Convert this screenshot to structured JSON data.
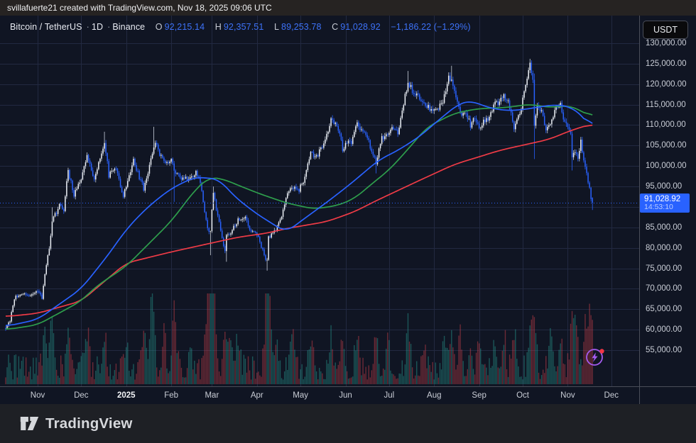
{
  "attribution_bar": {
    "text": "svillafuerte21 created with TradingView.com, Nov 18, 2025 09:06 UTC"
  },
  "legend": {
    "title": "Bitcoin / TetherUS",
    "sep": "·",
    "interval": "1D",
    "exchange": "Binance",
    "o_label": "O",
    "o_value": "92,215.14",
    "h_label": "H",
    "h_value": "92,357.51",
    "l_label": "L",
    "l_value": "89,253.78",
    "c_label": "C",
    "c_value": "91,028.92",
    "change": "−1,186.22 (−1.29%)"
  },
  "price_axis": {
    "currency_button": "USDT",
    "labels": [
      {
        "value": 130000,
        "text": "130,000.00"
      },
      {
        "value": 125000,
        "text": "125,000.00"
      },
      {
        "value": 120000,
        "text": "120,000.00"
      },
      {
        "value": 115000,
        "text": "115,000.00"
      },
      {
        "value": 110000,
        "text": "110,000.00"
      },
      {
        "value": 105000,
        "text": "105,000.00"
      },
      {
        "value": 100000,
        "text": "100,000.00"
      },
      {
        "value": 95000,
        "text": "95,000.00"
      },
      {
        "value": 85000,
        "text": "85,000.00"
      },
      {
        "value": 80000,
        "text": "80,000.00"
      },
      {
        "value": 75000,
        "text": "75,000.00"
      },
      {
        "value": 70000,
        "text": "70,000.00"
      },
      {
        "value": 65000,
        "text": "65,000.00"
      },
      {
        "value": 60000,
        "text": "60,000.00"
      },
      {
        "value": 55000,
        "text": "55,000.00"
      }
    ],
    "last_price_label": {
      "price": "91,028.92",
      "countdown": "14:53:10"
    }
  },
  "time_axis": {
    "ticks": [
      {
        "label": "Nov",
        "day": 22,
        "bold": false
      },
      {
        "label": "Dec",
        "day": 52,
        "bold": false
      },
      {
        "label": "2025",
        "day": 83,
        "bold": true
      },
      {
        "label": "Feb",
        "day": 114,
        "bold": false
      },
      {
        "label": "Mar",
        "day": 142,
        "bold": false
      },
      {
        "label": "Apr",
        "day": 173,
        "bold": false
      },
      {
        "label": "May",
        "day": 203,
        "bold": false
      },
      {
        "label": "Jun",
        "day": 234,
        "bold": false
      },
      {
        "label": "Jul",
        "day": 264,
        "bold": false
      },
      {
        "label": "Aug",
        "day": 295,
        "bold": false
      },
      {
        "label": "Sep",
        "day": 326,
        "bold": false
      },
      {
        "label": "Oct",
        "day": 356,
        "bold": false
      },
      {
        "label": "Nov",
        "day": 387,
        "bold": false
      },
      {
        "label": "Dec",
        "day": 417,
        "bold": false
      }
    ]
  },
  "footer": {
    "brand": "TradingView"
  },
  "events_button": {
    "icon": "lightning-bolt-icon",
    "badge_color": "#f23645"
  },
  "colors": {
    "pane_background": "#101523",
    "grid": "#222941",
    "candle_up": "#eef2f8",
    "candle_down": "#2962ff",
    "ma_fast": "#2962ff",
    "ma_mid": "#2e9e4c",
    "ma_slow": "#ef3b46",
    "volume_up": "rgba(42,166,152,0.45)",
    "volume_down": "rgba(235,72,82,0.42)",
    "last_price_line": "#2962ff",
    "axis_text": "#c9cdd6"
  },
  "chart_data": {
    "type": "candlestick",
    "title": "Bitcoin / TetherUS",
    "interval": "1D",
    "exchange": "Binance",
    "currency": "USDT",
    "ohlc_current": {
      "open": 92215.14,
      "high": 92357.51,
      "low": 89253.78,
      "close": 91028.92,
      "change": -1186.22,
      "change_pct": -1.29
    },
    "last_price": 91028.92,
    "countdown": "14:53:10",
    "y_axis": {
      "visible_min": 55000,
      "visible_max": 130000,
      "step": 5000,
      "grid": true,
      "side": "right"
    },
    "x_axis": {
      "span": "Oct 2024 – Dec 2025",
      "candles": 405,
      "grid": true
    },
    "close_anchors": [
      [
        0,
        60300
      ],
      [
        3,
        62100
      ],
      [
        6,
        67600
      ],
      [
        11,
        69000
      ],
      [
        16,
        68200
      ],
      [
        19,
        68500
      ],
      [
        22,
        69500
      ],
      [
        25,
        67500
      ],
      [
        27,
        74000
      ],
      [
        30,
        80000
      ],
      [
        32,
        86500
      ],
      [
        34,
        88000
      ],
      [
        37,
        90500
      ],
      [
        40,
        89500
      ],
      [
        43,
        98800
      ],
      [
        47,
        93000
      ],
      [
        52,
        96500
      ],
      [
        56,
        102500
      ],
      [
        61,
        96600
      ],
      [
        68,
        106300
      ],
      [
        71,
        97800
      ],
      [
        76,
        99100
      ],
      [
        81,
        92800
      ],
      [
        88,
        101300
      ],
      [
        95,
        94400
      ],
      [
        102,
        104200
      ],
      [
        103,
        106100
      ],
      [
        106,
        103000
      ],
      [
        109,
        100700
      ],
      [
        114,
        101600
      ],
      [
        116,
        98800
      ],
      [
        121,
        96500
      ],
      [
        127,
        97000
      ],
      [
        131,
        98500
      ],
      [
        134,
        96100
      ],
      [
        139,
        84300
      ],
      [
        141,
        84400
      ],
      [
        143,
        93500
      ],
      [
        147,
        86000
      ],
      [
        151,
        79100
      ],
      [
        152,
        82900
      ],
      [
        155,
        83800
      ],
      [
        160,
        86900
      ],
      [
        165,
        87500
      ],
      [
        169,
        84000
      ],
      [
        174,
        82800
      ],
      [
        178,
        78200
      ],
      [
        180,
        76600
      ],
      [
        181,
        82400
      ],
      [
        186,
        84600
      ],
      [
        190,
        87500
      ],
      [
        194,
        93400
      ],
      [
        197,
        94600
      ],
      [
        202,
        94200
      ],
      [
        206,
        97000
      ],
      [
        210,
        103200
      ],
      [
        214,
        102100
      ],
      [
        220,
        106400
      ],
      [
        224,
        111000
      ],
      [
        229,
        109200
      ],
      [
        232,
        104000
      ],
      [
        235,
        105800
      ],
      [
        238,
        105600
      ],
      [
        242,
        110200
      ],
      [
        246,
        108500
      ],
      [
        249,
        106900
      ],
      [
        252,
        103500
      ],
      [
        255,
        101000
      ],
      [
        259,
        107000
      ],
      [
        263,
        107200
      ],
      [
        266,
        109700
      ],
      [
        270,
        108100
      ],
      [
        272,
        111200
      ],
      [
        275,
        117500
      ],
      [
        277,
        120100
      ],
      [
        281,
        118000
      ],
      [
        284,
        117300
      ],
      [
        288,
        115100
      ],
      [
        291,
        114200
      ],
      [
        295,
        113500
      ],
      [
        299,
        114600
      ],
      [
        302,
        116900
      ],
      [
        305,
        122000
      ],
      [
        307,
        120800
      ],
      [
        310,
        117400
      ],
      [
        313,
        113100
      ],
      [
        317,
        112500
      ],
      [
        320,
        110100
      ],
      [
        323,
        112000
      ],
      [
        326,
        109300
      ],
      [
        329,
        110900
      ],
      [
        332,
        111300
      ],
      [
        335,
        114000
      ],
      [
        337,
        116000
      ],
      [
        340,
        115400
      ],
      [
        343,
        117000
      ],
      [
        346,
        115800
      ],
      [
        350,
        109200
      ],
      [
        353,
        112500
      ],
      [
        355,
        114100
      ],
      [
        358,
        120000
      ],
      [
        360,
        123200
      ],
      [
        361,
        125100
      ],
      [
        363,
        121500
      ],
      [
        364,
        110000
      ],
      [
        366,
        115000
      ],
      [
        369,
        113200
      ],
      [
        372,
        108800
      ],
      [
        375,
        110500
      ],
      [
        378,
        113500
      ],
      [
        382,
        114800
      ],
      [
        385,
        110600
      ],
      [
        389,
        107500
      ],
      [
        390,
        101500
      ],
      [
        392,
        103600
      ],
      [
        394,
        101300
      ],
      [
        396,
        105900
      ],
      [
        399,
        99500
      ],
      [
        401,
        95900
      ],
      [
        402,
        94800
      ],
      [
        403,
        92200
      ],
      [
        404,
        91028.92
      ]
    ],
    "extremes": [
      [
        32,
        89900,
        null
      ],
      [
        68,
        108364,
        null
      ],
      [
        102,
        109588,
        null
      ],
      [
        116,
        null,
        91231
      ],
      [
        141,
        null,
        78200
      ],
      [
        143,
        95000,
        null
      ],
      [
        152,
        null,
        76600
      ],
      [
        180,
        null,
        74420
      ],
      [
        224,
        111980,
        null
      ],
      [
        255,
        null,
        98200
      ],
      [
        277,
        123218,
        null
      ],
      [
        307,
        124500,
        null
      ],
      [
        361,
        126199,
        null
      ],
      [
        364,
        122600,
        101700
      ],
      [
        390,
        null,
        98900
      ],
      [
        404,
        92357.51,
        89253.78
      ]
    ],
    "moving_averages": [
      {
        "name": "ma-fast",
        "color": "#2962ff",
        "points": [
          [
            0,
            60800
          ],
          [
            22,
            62500
          ],
          [
            52,
            70000
          ],
          [
            70,
            78000
          ],
          [
            83,
            84500
          ],
          [
            95,
            89000
          ],
          [
            103,
            91500
          ],
          [
            114,
            94500
          ],
          [
            130,
            97300
          ],
          [
            147,
            96800
          ],
          [
            157,
            92700
          ],
          [
            172,
            88500
          ],
          [
            193,
            83800
          ],
          [
            207,
            87500
          ],
          [
            221,
            91100
          ],
          [
            237,
            95500
          ],
          [
            257,
            101500
          ],
          [
            270,
            103800
          ],
          [
            285,
            107200
          ],
          [
            300,
            111800
          ],
          [
            312,
            115200
          ],
          [
            320,
            116000
          ],
          [
            332,
            114300
          ],
          [
            345,
            113500
          ],
          [
            357,
            113800
          ],
          [
            370,
            114600
          ],
          [
            380,
            115000
          ],
          [
            390,
            114300
          ],
          [
            397,
            112300
          ],
          [
            404,
            109000
          ]
        ]
      },
      {
        "name": "ma-mid",
        "color": "#2e9e4c",
        "points": [
          [
            0,
            60000
          ],
          [
            22,
            61200
          ],
          [
            52,
            67000
          ],
          [
            62,
            70500
          ],
          [
            83,
            75500
          ],
          [
            114,
            86500
          ],
          [
            130,
            94000
          ],
          [
            140,
            97300
          ],
          [
            150,
            96800
          ],
          [
            160,
            95300
          ],
          [
            175,
            93200
          ],
          [
            193,
            91000
          ],
          [
            212,
            89500
          ],
          [
            228,
            90300
          ],
          [
            240,
            92000
          ],
          [
            255,
            96500
          ],
          [
            264,
            99000
          ],
          [
            277,
            104100
          ],
          [
            290,
            109500
          ],
          [
            309,
            112900
          ],
          [
            325,
            114000
          ],
          [
            345,
            114300
          ],
          [
            361,
            115100
          ],
          [
            374,
            114300
          ],
          [
            388,
            114800
          ],
          [
            396,
            113500
          ],
          [
            404,
            111900
          ]
        ]
      },
      {
        "name": "ma-slow",
        "color": "#ef3b46",
        "points": [
          [
            0,
            63200
          ],
          [
            22,
            64000
          ],
          [
            52,
            67000
          ],
          [
            83,
            76300
          ],
          [
            114,
            79000
          ],
          [
            142,
            81200
          ],
          [
            160,
            82600
          ],
          [
            180,
            83600
          ],
          [
            193,
            84700
          ],
          [
            221,
            86400
          ],
          [
            240,
            88800
          ],
          [
            255,
            91500
          ],
          [
            270,
            94000
          ],
          [
            285,
            96500
          ],
          [
            309,
            100400
          ],
          [
            341,
            103900
          ],
          [
            374,
            106500
          ],
          [
            390,
            108800
          ],
          [
            404,
            110300
          ]
        ]
      }
    ],
    "volume": {
      "scale": "unlabeled relative bars",
      "spikes": [
        [
          27,
          0.5
        ],
        [
          32,
          0.62
        ],
        [
          43,
          0.5
        ],
        [
          56,
          0.42
        ],
        [
          68,
          0.4
        ],
        [
          83,
          0.3
        ],
        [
          95,
          0.38
        ],
        [
          101,
          1.0
        ],
        [
          109,
          0.4
        ],
        [
          116,
          0.85
        ],
        [
          127,
          0.35
        ],
        [
          139,
          0.72
        ],
        [
          141,
          0.78
        ],
        [
          143,
          0.9
        ],
        [
          151,
          0.52
        ],
        [
          155,
          0.42
        ],
        [
          160,
          0.35
        ],
        [
          180,
          0.92
        ],
        [
          181,
          0.85
        ],
        [
          186,
          0.35
        ],
        [
          197,
          0.5
        ],
        [
          210,
          0.32
        ],
        [
          224,
          0.4
        ],
        [
          232,
          0.33
        ],
        [
          242,
          0.35
        ],
        [
          255,
          0.46
        ],
        [
          263,
          0.3
        ],
        [
          277,
          0.5
        ],
        [
          288,
          0.32
        ],
        [
          302,
          0.35
        ],
        [
          307,
          0.46
        ],
        [
          313,
          0.4
        ],
        [
          320,
          0.33
        ],
        [
          326,
          0.38
        ],
        [
          337,
          0.33
        ],
        [
          343,
          0.36
        ],
        [
          350,
          0.4
        ],
        [
          361,
          0.42
        ],
        [
          364,
          0.66
        ],
        [
          375,
          0.33
        ],
        [
          382,
          0.35
        ],
        [
          390,
          0.72
        ],
        [
          393,
          0.42
        ],
        [
          399,
          0.5
        ],
        [
          402,
          0.46
        ],
        [
          404,
          0.48
        ]
      ]
    }
  }
}
